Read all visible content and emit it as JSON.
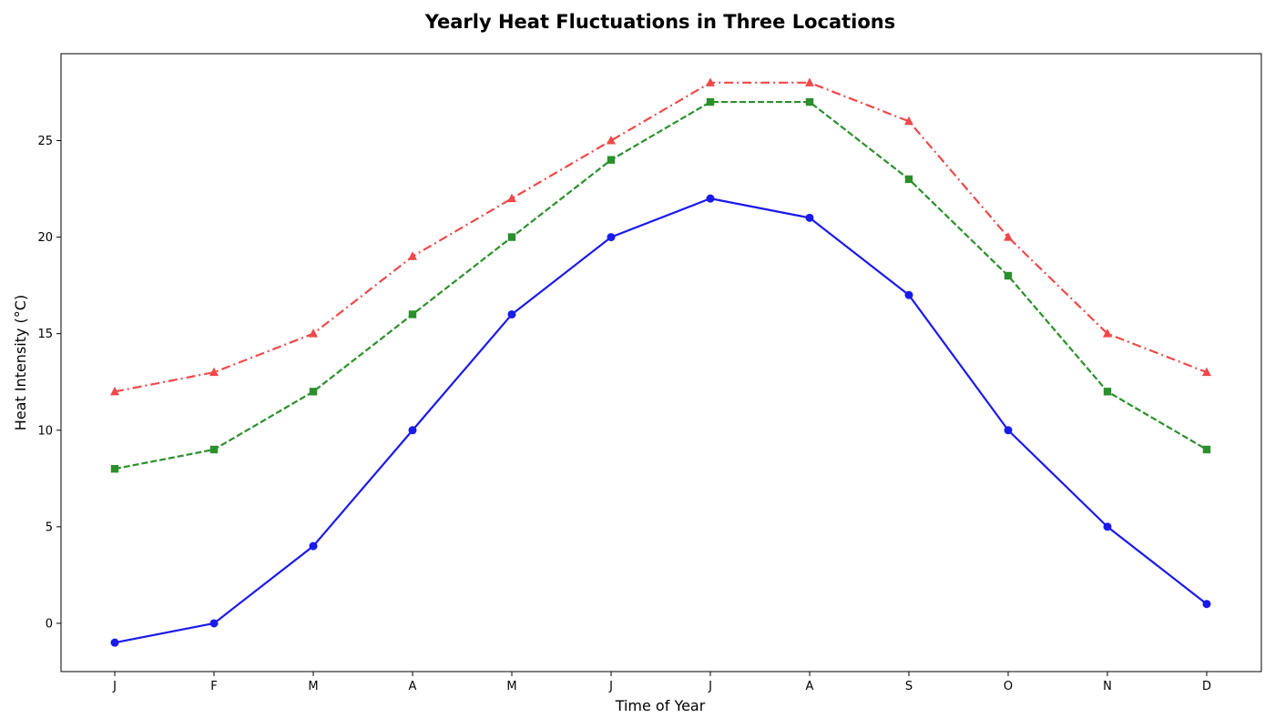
{
  "chart_data": {
    "type": "line",
    "title": "Yearly Heat Fluctuations in Three Locations",
    "xlabel": "Time of Year",
    "ylabel": "Heat Intensity (°C)",
    "categories": [
      "J",
      "F",
      "M",
      "A",
      "M",
      "J",
      "J",
      "A",
      "S",
      "O",
      "N",
      "D"
    ],
    "ylim": [
      -2.5,
      29.5
    ],
    "yticks": [
      0,
      5,
      10,
      15,
      20,
      25
    ],
    "grid": false,
    "legend": "none",
    "series": [
      {
        "values": [
          -1,
          0,
          4,
          10,
          16,
          20,
          22,
          21,
          17,
          10,
          5,
          1
        ],
        "color": "#1a1aeb",
        "line_style": "solid",
        "marker": "circle"
      },
      {
        "values": [
          8,
          9,
          12,
          16,
          20,
          24,
          27,
          27,
          23,
          18,
          12,
          9
        ],
        "color": "#2b8f2b",
        "line_style": "dashed",
        "marker": "square"
      },
      {
        "values": [
          12,
          13,
          15,
          19,
          22,
          25,
          28,
          28,
          26,
          20,
          15,
          13
        ],
        "color": "#f04848",
        "line_style": "dashdot",
        "marker": "triangle"
      }
    ]
  }
}
